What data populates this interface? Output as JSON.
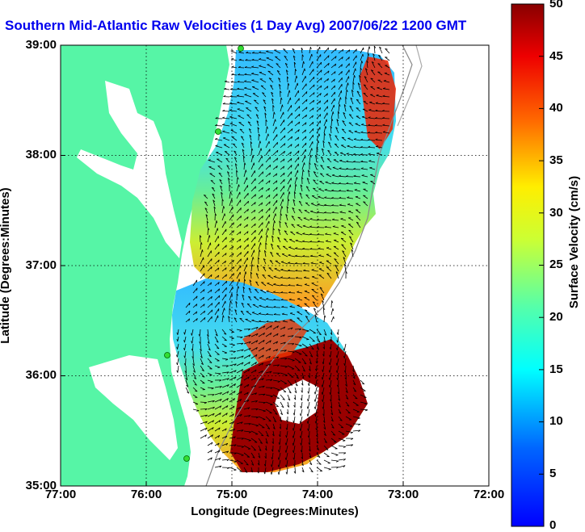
{
  "title": "Southern Mid-Atlantic Raw Velocities (1 Day Avg) 2007/06/22 1200 GMT",
  "ylabel": "Latitude (Degrees:Minutes)",
  "xlabel": "Longitude (Degrees:Minutes)",
  "colorbar": {
    "label": "Surface Velocity (cm/s)",
    "ticks": [
      "50",
      "45",
      "40",
      "35",
      "30",
      "25",
      "20",
      "15",
      "10",
      "5",
      "0"
    ],
    "min": 0,
    "max": 50,
    "colormap": "jet"
  },
  "axes": {
    "y_ticks": [
      "39:00",
      "38:00",
      "37:00",
      "36:00",
      "35:00"
    ],
    "x_ticks": [
      "77:00",
      "76:00",
      "75:00",
      "74:00",
      "73:00",
      "72:00"
    ],
    "lon_range": [
      -77,
      -72
    ],
    "lat_range": [
      35,
      39
    ],
    "grid": "dotted"
  },
  "colors": {
    "land": "#56f5a6",
    "title": "#0000ee",
    "arrows": "#000000",
    "station": "#33dd33"
  }
}
